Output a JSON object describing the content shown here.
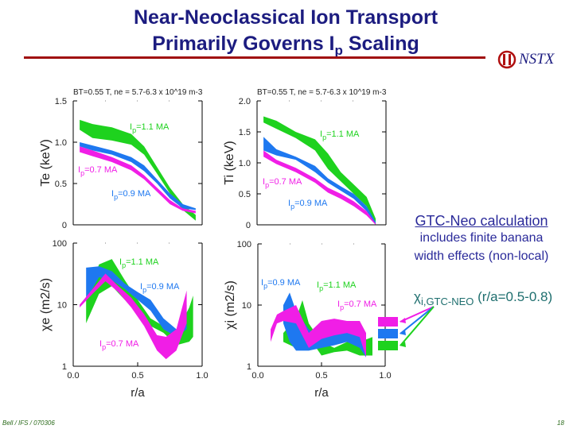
{
  "title": {
    "line1": "Near-Neoclassical Ion Transport",
    "line2_pre": "Primarily Governs I",
    "line2_sub": "p",
    "line2_post": " Scaling"
  },
  "logo": {
    "text": "NSTX"
  },
  "colors": {
    "ip_1_1": "#1ed21e",
    "ip_0_9": "#1e78f0",
    "ip_0_7": "#f01ee6",
    "title": "#1c1c80",
    "rule": "#a01010",
    "note": "#2a2a9a",
    "chi_note": "#1f6f6f"
  },
  "annotation": {
    "gtc": "GTC-Neo calculation",
    "includes1": "includes finite banana",
    "includes2": "width effects (non-local)",
    "chi_symbol": "χ",
    "chi_sub": "i,GTC-NEO",
    "chi_range": " (r/a=0.5-0.8)"
  },
  "gtc_boxes": [
    {
      "series": "Ip=0.7 MA",
      "color": "#f01ee6"
    },
    {
      "series": "Ip=0.9 MA",
      "color": "#1e78f0"
    },
    {
      "series": "Ip=1.1 MA",
      "color": "#1ed21e"
    }
  ],
  "footer": {
    "left": "Bell / IFS / 070306",
    "page": "18"
  },
  "chart_data": [
    {
      "type": "area",
      "id": "te",
      "header": "BT=0.55 T, ne = 5.7-6.3 x 10^19 m-3",
      "ylabel": "Te (keV)",
      "xlabel": "",
      "ylim": [
        0,
        1.5
      ],
      "xlim": [
        0,
        1
      ],
      "yscale": "linear",
      "yticks": [
        "0",
        "0.5",
        "1.0",
        "1.5"
      ],
      "xticks": [],
      "series": [
        {
          "name": "Ip=1.1 MA",
          "color": "#1ed21e",
          "r": [
            0.05,
            0.15,
            0.3,
            0.45,
            0.55,
            0.65,
            0.75,
            0.85,
            0.95
          ],
          "hi": [
            1.27,
            1.22,
            1.18,
            1.1,
            0.95,
            0.7,
            0.45,
            0.25,
            0.12
          ],
          "lo": [
            1.15,
            1.05,
            1.02,
            0.97,
            0.85,
            0.62,
            0.38,
            0.18,
            0.05
          ]
        },
        {
          "name": "Ip=0.9 MA",
          "color": "#1e78f0",
          "r": [
            0.05,
            0.15,
            0.3,
            0.45,
            0.55,
            0.65,
            0.75,
            0.85,
            0.95
          ],
          "hi": [
            1.0,
            0.96,
            0.9,
            0.82,
            0.72,
            0.55,
            0.38,
            0.25,
            0.2
          ],
          "lo": [
            0.95,
            0.9,
            0.85,
            0.76,
            0.65,
            0.5,
            0.32,
            0.2,
            0.18
          ]
        },
        {
          "name": "Ip=0.7 MA",
          "color": "#f01ee6",
          "r": [
            0.05,
            0.15,
            0.3,
            0.45,
            0.55,
            0.65,
            0.75,
            0.85,
            0.95
          ],
          "hi": [
            0.95,
            0.9,
            0.82,
            0.72,
            0.6,
            0.45,
            0.3,
            0.2,
            0.17
          ],
          "lo": [
            0.88,
            0.83,
            0.76,
            0.66,
            0.55,
            0.4,
            0.25,
            0.17,
            0.14
          ]
        }
      ]
    },
    {
      "type": "area",
      "id": "ti",
      "header": "BT=0.55 T, ne = 5.7-6.3 x 10^19 m-3",
      "ylabel": "Ti (keV)",
      "xlabel": "",
      "ylim": [
        0,
        2
      ],
      "xlim": [
        0,
        1
      ],
      "yscale": "linear",
      "yticks": [
        "0",
        "0.5",
        "1.0",
        "1.5",
        "2.0"
      ],
      "xticks": [],
      "series": [
        {
          "name": "Ip=1.1 MA",
          "color": "#1ed21e",
          "r": [
            0.05,
            0.15,
            0.3,
            0.45,
            0.55,
            0.65,
            0.75,
            0.85,
            0.92
          ],
          "hi": [
            1.75,
            1.68,
            1.5,
            1.38,
            1.15,
            0.85,
            0.65,
            0.45,
            0.1
          ],
          "lo": [
            1.65,
            1.55,
            1.4,
            1.2,
            0.9,
            0.7,
            0.5,
            0.3,
            0.0
          ]
        },
        {
          "name": "Ip=0.9 MA",
          "color": "#1e78f0",
          "r": [
            0.05,
            0.15,
            0.3,
            0.45,
            0.55,
            0.65,
            0.75,
            0.85,
            0.92
          ],
          "hi": [
            1.42,
            1.22,
            1.1,
            0.95,
            0.75,
            0.62,
            0.5,
            0.3,
            0.05
          ],
          "lo": [
            1.2,
            1.12,
            1.05,
            0.85,
            0.68,
            0.55,
            0.42,
            0.22,
            0.0
          ]
        },
        {
          "name": "Ip=0.7 MA",
          "color": "#f01ee6",
          "r": [
            0.05,
            0.15,
            0.3,
            0.45,
            0.55,
            0.65,
            0.75,
            0.85,
            0.92
          ],
          "hi": [
            1.2,
            1.05,
            0.92,
            0.75,
            0.6,
            0.5,
            0.38,
            0.22,
            0.02
          ],
          "lo": [
            1.1,
            0.98,
            0.85,
            0.68,
            0.52,
            0.42,
            0.3,
            0.15,
            0.0
          ]
        }
      ]
    },
    {
      "type": "area",
      "id": "chie",
      "ylabel": "χe (m2/s)",
      "xlabel": "r/a",
      "ylim": [
        1,
        100
      ],
      "xlim": [
        0,
        1
      ],
      "yscale": "log",
      "yticks": [
        "1",
        "10",
        "100"
      ],
      "xticks": [
        "0.0",
        "0.5",
        "1.0"
      ],
      "series": [
        {
          "name": "Ip=1.1 MA",
          "color": "#1ed21e",
          "r": [
            0.1,
            0.2,
            0.3,
            0.4,
            0.5,
            0.6,
            0.7,
            0.8,
            0.9,
            0.93
          ],
          "hi": [
            12,
            45,
            55,
            25,
            12,
            6,
            4.5,
            3.5,
            9,
            14
          ],
          "lo": [
            5,
            15,
            20,
            12,
            7,
            4.5,
            3.5,
            2.2,
            2.5,
            3
          ]
        },
        {
          "name": "Ip=0.9 MA",
          "color": "#1e78f0",
          "r": [
            0.1,
            0.2,
            0.3,
            0.4,
            0.5,
            0.6,
            0.7,
            0.8,
            0.88
          ],
          "hi": [
            40,
            42,
            35,
            22,
            16,
            12,
            6,
            4,
            10
          ],
          "lo": [
            12,
            28,
            25,
            18,
            12,
            8,
            4,
            3,
            4
          ]
        },
        {
          "name": "Ip=0.7 MA",
          "color": "#f01ee6",
          "r": [
            0.05,
            0.15,
            0.25,
            0.35,
            0.45,
            0.55,
            0.65,
            0.72,
            0.8,
            0.88
          ],
          "hi": [
            10,
            18,
            32,
            20,
            13,
            7,
            3.2,
            3,
            4,
            17
          ],
          "lo": [
            9,
            15,
            24,
            16,
            9,
            4.5,
            1.8,
            1.3,
            1.8,
            5
          ]
        }
      ]
    },
    {
      "type": "area",
      "id": "chii",
      "ylabel": "χi (m2/s)",
      "xlabel": "r/a",
      "ylim": [
        1,
        100
      ],
      "xlim": [
        0,
        1
      ],
      "yscale": "log",
      "yticks": [
        "1",
        "10",
        "100"
      ],
      "xticks": [
        "0.0",
        "0.5",
        "1.0"
      ],
      "series": [
        {
          "name": "Ip=1.1 MA",
          "color": "#1ed21e",
          "r": [
            0.2,
            0.3,
            0.35,
            0.4,
            0.5,
            0.6,
            0.7,
            0.8,
            0.9
          ],
          "hi": [
            3.5,
            6,
            12,
            5,
            2.5,
            2,
            2.5,
            2.5,
            3
          ],
          "lo": [
            2.5,
            2,
            4,
            3,
            1.5,
            1.7,
            1.8,
            1.5,
            1.5
          ]
        },
        {
          "name": "Ip=0.9 MA",
          "color": "#1e78f0",
          "r": [
            0.2,
            0.25,
            0.3,
            0.4,
            0.5,
            0.6,
            0.7,
            0.8,
            0.85
          ],
          "hi": [
            10,
            16,
            8,
            4,
            3,
            3.5,
            4,
            4,
            3
          ],
          "lo": [
            5,
            2.5,
            1.8,
            1.8,
            2,
            2.2,
            2.5,
            2,
            1.4
          ]
        },
        {
          "name": "Ip=0.7 MA",
          "color": "#f01ee6",
          "r": [
            0.1,
            0.15,
            0.2,
            0.3,
            0.4,
            0.5,
            0.6,
            0.7,
            0.8,
            0.85
          ],
          "hi": [
            4,
            7,
            8,
            10,
            3.5,
            5.5,
            6,
            5.5,
            5.5,
            3.5
          ],
          "lo": [
            2.5,
            5,
            5.5,
            5,
            2,
            2.8,
            3.2,
            3.5,
            3,
            1.4
          ]
        }
      ]
    }
  ]
}
